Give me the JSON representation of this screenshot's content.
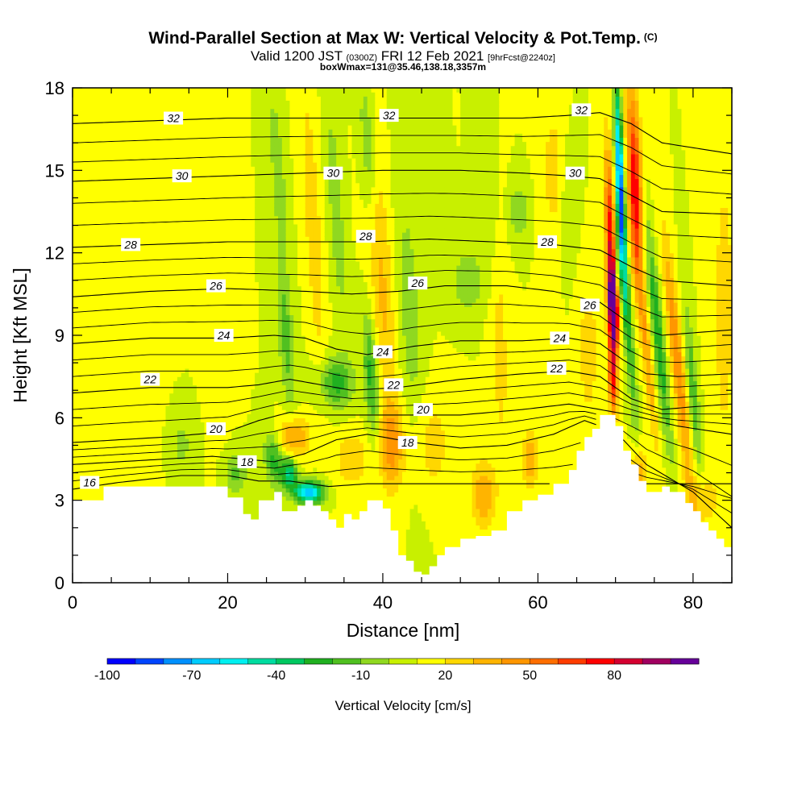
{
  "header": {
    "title": "Wind-Parallel Section at Max W: Vertical Velocity & Pot.Temp.",
    "copyright_mark": "(C)",
    "valid_prefix": "Valid 1200 JST",
    "valid_utc": "(0300Z)",
    "valid_date": "FRI 12 Feb 2021",
    "forecast_info": "[9hrFcst@2240z]",
    "box_info": "boxWmax=131@35.46,138.18,3357m"
  },
  "colors": {
    "background_field": "#ffff00",
    "terrain": "#ffffff",
    "isentrope": "#000000",
    "scale": [
      "#0000ff",
      "#0044ff",
      "#0090ff",
      "#00ccff",
      "#00f0f0",
      "#00dca0",
      "#00c860",
      "#20b020",
      "#50c020",
      "#90d820",
      "#c8f000",
      "#ffff00",
      "#ffd700",
      "#ffb400",
      "#ff9600",
      "#ff6e00",
      "#ff3c00",
      "#ff0000",
      "#d40030",
      "#a00060",
      "#660099"
    ]
  },
  "chart_data": {
    "type": "heatmap",
    "xlabel": "Distance [nm]",
    "ylabel": "Height [Kft MSL]",
    "xlim": [
      0,
      85
    ],
    "ylim": [
      0,
      18
    ],
    "x_ticks": [
      "0",
      "20",
      "40",
      "60",
      "80"
    ],
    "y_ticks": [
      "0",
      "3",
      "6",
      "9",
      "12",
      "15",
      "18"
    ],
    "colorbar": {
      "label": "Vertical Velocity [cm/s]",
      "tick_labels": [
        "-100",
        "-70",
        "-40",
        "-10",
        "20",
        "50",
        "80"
      ],
      "min": -100,
      "max": 100,
      "step": 10
    },
    "terrain_height_kft": [
      [
        0,
        3.0
      ],
      [
        4,
        3.5
      ],
      [
        14,
        3.5
      ],
      [
        18,
        3.5
      ],
      [
        20,
        3.1
      ],
      [
        22,
        2.5
      ],
      [
        23,
        2.3
      ],
      [
        24,
        3.0
      ],
      [
        26,
        3.3
      ],
      [
        27,
        2.6
      ],
      [
        28,
        2.6
      ],
      [
        29,
        2.8
      ],
      [
        30,
        3.0
      ],
      [
        31,
        2.8
      ],
      [
        32,
        2.6
      ],
      [
        33,
        2.3
      ],
      [
        34,
        2.0
      ],
      [
        35,
        2.5
      ],
      [
        36,
        2.3
      ],
      [
        37,
        2.6
      ],
      [
        38,
        3.0
      ],
      [
        39,
        3.0
      ],
      [
        40,
        2.7
      ],
      [
        41,
        1.9
      ],
      [
        42,
        1.0
      ],
      [
        43,
        0.8
      ],
      [
        44,
        0.4
      ],
      [
        45,
        0.3
      ],
      [
        46,
        0.6
      ],
      [
        47,
        1.0
      ],
      [
        48,
        1.3
      ],
      [
        49,
        1.3
      ],
      [
        50,
        1.6
      ],
      [
        52,
        1.7
      ],
      [
        54,
        1.9
      ],
      [
        56,
        2.6
      ],
      [
        58,
        3.0
      ],
      [
        60,
        3.2
      ],
      [
        62,
        3.6
      ],
      [
        64,
        4.1
      ],
      [
        65,
        4.8
      ],
      [
        66,
        5.3
      ],
      [
        67,
        5.6
      ],
      [
        68,
        6.1
      ],
      [
        69,
        6.1
      ],
      [
        70,
        5.7
      ],
      [
        71,
        4.8
      ],
      [
        72,
        4.3
      ],
      [
        73,
        3.7
      ],
      [
        74,
        3.3
      ],
      [
        75,
        3.3
      ],
      [
        76,
        3.5
      ],
      [
        77,
        3.3
      ],
      [
        78,
        3.3
      ],
      [
        79,
        2.9
      ],
      [
        80,
        2.6
      ],
      [
        81,
        2.2
      ],
      [
        82,
        1.9
      ],
      [
        83,
        1.6
      ],
      [
        84,
        1.3
      ],
      [
        85,
        1.0
      ]
    ],
    "vertical_velocity_features": [
      {
        "x": 8,
        "y": 8.0,
        "rx": 3.5,
        "ry": 7.0,
        "tilt": 0.0,
        "w": 10
      },
      {
        "x": 14,
        "y": 5.0,
        "rx": 2.0,
        "ry": 1.5,
        "tilt": 0.0,
        "w": -12
      },
      {
        "x": 18,
        "y": 11.0,
        "rx": 1.8,
        "ry": 5.0,
        "tilt": -0.1,
        "w": 10
      },
      {
        "x": 21,
        "y": 4.0,
        "rx": 1.5,
        "ry": 0.8,
        "tilt": 0.0,
        "w": -22
      },
      {
        "x": 26,
        "y": 4.5,
        "rx": 1.2,
        "ry": 1.0,
        "tilt": -0.3,
        "w": -35
      },
      {
        "x": 28,
        "y": 4.0,
        "rx": 1.0,
        "ry": 0.6,
        "tilt": 0.0,
        "w": -50
      },
      {
        "x": 30.5,
        "y": 3.3,
        "rx": 1.8,
        "ry": 0.4,
        "tilt": 0.0,
        "w": -80
      },
      {
        "x": 28.5,
        "y": 5.3,
        "rx": 2.0,
        "ry": 0.8,
        "tilt": 0.0,
        "w": 35
      },
      {
        "x": 27.5,
        "y": 9.0,
        "rx": 1.0,
        "ry": 3.0,
        "tilt": -0.25,
        "w": -25
      },
      {
        "x": 26.5,
        "y": 15.0,
        "rx": 0.8,
        "ry": 2.8,
        "tilt": -0.25,
        "w": -20
      },
      {
        "x": 31,
        "y": 13.0,
        "rx": 1.0,
        "ry": 5.0,
        "tilt": -0.2,
        "w": 20
      },
      {
        "x": 34,
        "y": 7.3,
        "rx": 2.2,
        "ry": 0.9,
        "tilt": 0.0,
        "w": -35
      },
      {
        "x": 34,
        "y": 13.5,
        "rx": 0.9,
        "ry": 4.0,
        "tilt": -0.2,
        "w": -18
      },
      {
        "x": 36,
        "y": 4.5,
        "rx": 2.0,
        "ry": 1.0,
        "tilt": 0.0,
        "w": 20
      },
      {
        "x": 38.5,
        "y": 7.5,
        "rx": 0.9,
        "ry": 2.2,
        "tilt": -0.2,
        "w": -35
      },
      {
        "x": 40,
        "y": 10.5,
        "rx": 1.5,
        "ry": 5.0,
        "tilt": -0.2,
        "w": 22
      },
      {
        "x": 38,
        "y": 16.0,
        "rx": 0.9,
        "ry": 2.5,
        "tilt": -0.2,
        "w": -20
      },
      {
        "x": 41,
        "y": 5.0,
        "rx": 1.6,
        "ry": 1.5,
        "tilt": 0.0,
        "w": 32
      },
      {
        "x": 43.5,
        "y": 9.5,
        "rx": 1.6,
        "ry": 5.5,
        "tilt": -0.15,
        "w": -15
      },
      {
        "x": 46,
        "y": 5.0,
        "rx": 3.0,
        "ry": 2.0,
        "tilt": 0.0,
        "w": 15
      },
      {
        "x": 51,
        "y": 11.0,
        "rx": 2.2,
        "ry": 1.2,
        "tilt": 0.0,
        "w": -18
      },
      {
        "x": 54,
        "y": 14.0,
        "rx": 1.0,
        "ry": 3.5,
        "tilt": -0.1,
        "w": -12
      },
      {
        "x": 53,
        "y": 3.2,
        "rx": 1.5,
        "ry": 1.2,
        "tilt": 0.0,
        "w": 30
      },
      {
        "x": 55,
        "y": 9.0,
        "rx": 1.2,
        "ry": 5.0,
        "tilt": -0.1,
        "w": 15
      },
      {
        "x": 57.5,
        "y": 13.5,
        "rx": 1.2,
        "ry": 1.0,
        "tilt": 0.0,
        "w": -20
      },
      {
        "x": 59,
        "y": 4.5,
        "rx": 1.0,
        "ry": 1.0,
        "tilt": 0.0,
        "w": 30
      },
      {
        "x": 62,
        "y": 15.0,
        "rx": 1.5,
        "ry": 2.5,
        "tilt": 0.0,
        "w": 15
      },
      {
        "x": 64,
        "y": 14.0,
        "rx": 1.0,
        "ry": 2.0,
        "tilt": 0.0,
        "w": -12
      },
      {
        "x": 66.5,
        "y": 8.5,
        "rx": 1.2,
        "ry": 2.5,
        "tilt": 0.0,
        "w": 18
      },
      {
        "x": 69.8,
        "y": 10.0,
        "rx": 0.7,
        "ry": 1.3,
        "tilt": -0.12,
        "w": 95
      },
      {
        "x": 69.5,
        "y": 12.0,
        "rx": 0.7,
        "ry": 3.5,
        "tilt": -0.12,
        "w": 75
      },
      {
        "x": 69.6,
        "y": 7.5,
        "rx": 0.5,
        "ry": 1.5,
        "tilt": -0.1,
        "w": 60
      },
      {
        "x": 70.6,
        "y": 14.5,
        "rx": 0.5,
        "ry": 3.5,
        "tilt": -0.12,
        "w": -90
      },
      {
        "x": 70.2,
        "y": 11.0,
        "rx": 0.4,
        "ry": 2.5,
        "tilt": -0.12,
        "w": -40
      },
      {
        "x": 71.5,
        "y": 10.0,
        "rx": 0.6,
        "ry": 4.5,
        "tilt": -0.25,
        "w": -35
      },
      {
        "x": 72.5,
        "y": 14.5,
        "rx": 0.9,
        "ry": 3.5,
        "tilt": -0.12,
        "w": 68
      },
      {
        "x": 74,
        "y": 8.5,
        "rx": 0.6,
        "ry": 3.5,
        "tilt": -0.35,
        "w": 30
      },
      {
        "x": 75.5,
        "y": 9.0,
        "rx": 0.7,
        "ry": 4.0,
        "tilt": -0.35,
        "w": -40
      },
      {
        "x": 78,
        "y": 8.0,
        "rx": 0.8,
        "ry": 4.5,
        "tilt": -0.35,
        "w": 40
      },
      {
        "x": 80,
        "y": 7.0,
        "rx": 0.6,
        "ry": 3.0,
        "tilt": -0.3,
        "w": -30
      },
      {
        "x": 73,
        "y": 4.0,
        "rx": 1.0,
        "ry": 1.0,
        "tilt": 0.0,
        "w": 30
      },
      {
        "x": 81,
        "y": 3.0,
        "rx": 2.0,
        "ry": 1.0,
        "tilt": 0.0,
        "w": 20
      },
      {
        "x": 84,
        "y": 10.0,
        "rx": 1.5,
        "ry": 6.0,
        "tilt": 0.0,
        "w": 15
      }
    ],
    "isentropes": [
      {
        "label": "16",
        "points": [
          [
            0,
            3.4
          ],
          [
            6,
            3.65
          ],
          [
            14,
            3.9
          ],
          [
            20,
            3.9
          ],
          [
            24,
            3.7
          ],
          [
            28,
            3.7
          ],
          [
            33,
            3.5
          ],
          [
            38,
            3.6
          ]
        ]
      },
      {
        "label": "18",
        "points": [
          [
            0,
            4.3
          ],
          [
            12,
            4.5
          ],
          [
            18,
            4.6
          ],
          [
            22,
            4.5
          ],
          [
            26,
            4.4
          ],
          [
            30,
            4.7
          ],
          [
            34,
            5.2
          ],
          [
            38,
            5.4
          ],
          [
            44,
            5.1
          ],
          [
            50,
            4.9
          ],
          [
            56,
            5.0
          ],
          [
            62,
            5.4
          ],
          [
            66,
            5.9
          ],
          [
            70,
            5.5
          ],
          [
            74,
            4.3
          ],
          [
            80,
            3.3
          ],
          [
            85,
            2.0
          ]
        ]
      },
      {
        "label": "20",
        "points": [
          [
            0,
            5.1
          ],
          [
            12,
            5.3
          ],
          [
            20,
            5.5
          ],
          [
            24,
            5.9
          ],
          [
            28,
            6.2
          ],
          [
            32,
            6.1
          ],
          [
            36,
            6.1
          ],
          [
            42,
            6.1
          ],
          [
            50,
            6.1
          ],
          [
            58,
            6.3
          ],
          [
            64,
            6.5
          ],
          [
            68,
            6.3
          ],
          [
            72,
            6.1
          ],
          [
            78,
            5.7
          ],
          [
            85,
            5.4
          ]
        ]
      },
      {
        "label": "22",
        "points": [
          [
            0,
            6.9
          ],
          [
            10,
            7.1
          ],
          [
            20,
            7.1
          ],
          [
            24,
            7.2
          ],
          [
            28,
            7.4
          ],
          [
            32,
            7.2
          ],
          [
            36,
            7.0
          ],
          [
            42,
            7.1
          ],
          [
            50,
            7.4
          ],
          [
            58,
            7.6
          ],
          [
            64,
            7.7
          ],
          [
            68,
            7.5
          ],
          [
            72,
            6.7
          ],
          [
            76,
            6.3
          ],
          [
            80,
            6.4
          ],
          [
            85,
            6.5
          ]
        ]
      },
      {
        "label": "24",
        "points": [
          [
            0,
            8.7
          ],
          [
            10,
            8.9
          ],
          [
            20,
            8.9
          ],
          [
            26,
            9.0
          ],
          [
            30,
            8.9
          ],
          [
            34,
            8.5
          ],
          [
            38,
            8.3
          ],
          [
            44,
            8.6
          ],
          [
            50,
            8.8
          ],
          [
            58,
            8.8
          ],
          [
            64,
            8.9
          ],
          [
            68,
            8.7
          ],
          [
            71,
            8.1
          ],
          [
            74,
            7.6
          ],
          [
            78,
            7.5
          ],
          [
            85,
            7.6
          ]
        ]
      },
      {
        "label": "26",
        "points": [
          [
            0,
            10.4
          ],
          [
            10,
            10.6
          ],
          [
            20,
            10.7
          ],
          [
            30,
            10.6
          ],
          [
            36,
            10.5
          ],
          [
            42,
            10.6
          ],
          [
            48,
            10.8
          ],
          [
            56,
            10.8
          ],
          [
            62,
            10.6
          ],
          [
            68,
            10.2
          ],
          [
            72,
            9.4
          ],
          [
            76,
            9.0
          ],
          [
            85,
            9.2
          ]
        ]
      },
      {
        "label": "28",
        "points": [
          [
            0,
            12.2
          ],
          [
            10,
            12.3
          ],
          [
            20,
            12.4
          ],
          [
            30,
            12.4
          ],
          [
            38,
            12.4
          ],
          [
            46,
            12.5
          ],
          [
            54,
            12.4
          ],
          [
            62,
            12.3
          ],
          [
            68,
            12.1
          ],
          [
            72,
            11.5
          ],
          [
            76,
            11.0
          ],
          [
            85,
            10.8
          ]
        ]
      },
      {
        "label": "30",
        "points": [
          [
            0,
            14.6
          ],
          [
            10,
            14.7
          ],
          [
            20,
            14.8
          ],
          [
            30,
            14.9
          ],
          [
            40,
            15.0
          ],
          [
            50,
            15.0
          ],
          [
            58,
            14.9
          ],
          [
            64,
            14.8
          ],
          [
            68,
            14.7
          ],
          [
            72,
            14.1
          ],
          [
            76,
            13.5
          ],
          [
            85,
            13.4
          ]
        ]
      },
      {
        "label": "32",
        "points": [
          [
            0,
            16.7
          ],
          [
            10,
            16.8
          ],
          [
            20,
            16.9
          ],
          [
            30,
            16.9
          ],
          [
            40,
            16.9
          ],
          [
            50,
            16.9
          ],
          [
            58,
            16.9
          ],
          [
            64,
            17.0
          ],
          [
            68,
            17.1
          ],
          [
            72,
            16.7
          ],
          [
            76,
            16.0
          ],
          [
            85,
            15.6
          ]
        ]
      }
    ],
    "isentrope_labels": [
      {
        "text": "16",
        "x": 2.2,
        "y": 3.65
      },
      {
        "text": "18",
        "x": 22.5,
        "y": 4.4
      },
      {
        "text": "18",
        "x": 43.2,
        "y": 5.1
      },
      {
        "text": "20",
        "x": 18.5,
        "y": 5.6
      },
      {
        "text": "20",
        "x": 45.2,
        "y": 6.3
      },
      {
        "text": "22",
        "x": 10.0,
        "y": 7.4
      },
      {
        "text": "22",
        "x": 41.4,
        "y": 7.2
      },
      {
        "text": "22",
        "x": 62.4,
        "y": 7.8
      },
      {
        "text": "24",
        "x": 19.5,
        "y": 9.0
      },
      {
        "text": "24",
        "x": 40.0,
        "y": 8.4
      },
      {
        "text": "24",
        "x": 62.8,
        "y": 8.9
      },
      {
        "text": "26",
        "x": 18.5,
        "y": 10.8
      },
      {
        "text": "26",
        "x": 44.5,
        "y": 10.9
      },
      {
        "text": "26",
        "x": 66.7,
        "y": 10.1
      },
      {
        "text": "28",
        "x": 7.5,
        "y": 12.3
      },
      {
        "text": "28",
        "x": 37.8,
        "y": 12.6
      },
      {
        "text": "28",
        "x": 61.2,
        "y": 12.4
      },
      {
        "text": "30",
        "x": 14.1,
        "y": 14.8
      },
      {
        "text": "30",
        "x": 33.6,
        "y": 14.9
      },
      {
        "text": "30",
        "x": 64.8,
        "y": 14.9
      },
      {
        "text": "32",
        "x": 13.0,
        "y": 16.9
      },
      {
        "text": "32",
        "x": 40.8,
        "y": 17.0
      },
      {
        "text": "32",
        "x": 65.6,
        "y": 17.2
      }
    ],
    "grid": false
  }
}
